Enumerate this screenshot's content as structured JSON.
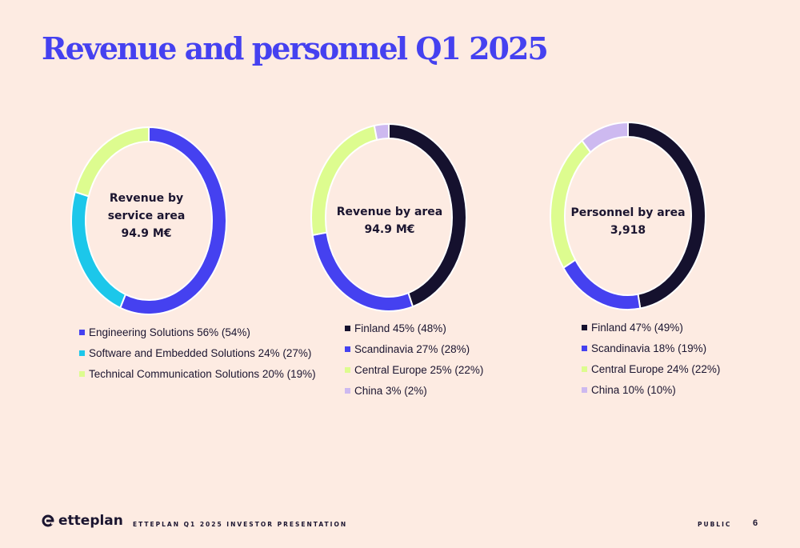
{
  "slide": {
    "title": "Revenue and personnel Q1 2025",
    "footer": "ETTEPLAN Q1 2025 INVESTOR PRESENTATION",
    "classification": "PUBLIC",
    "page_number": "6",
    "logo_text": "etteplan"
  },
  "colors": {
    "background": "#fdebe2",
    "title": "#4541f0",
    "navy": "#15112e",
    "blue": "#4541f0",
    "cyan": "#1cc7ea",
    "lime": "#ddfc8f",
    "lilac": "#cdb9f0"
  },
  "chart_data": [
    {
      "type": "pie",
      "center_label": [
        "Revenue by",
        "service area",
        "94.9 M€"
      ],
      "slices": [
        {
          "label": "Engineering Solutions 56% (54%)",
          "value": 56,
          "color": "#4541f0"
        },
        {
          "label": "Software and Embedded Solutions 24% (27%)",
          "value": 24,
          "color": "#1cc7ea"
        },
        {
          "label": "Technical Communication Solutions 20% (19%)",
          "value": 20,
          "color": "#ddfc8f"
        }
      ]
    },
    {
      "type": "pie",
      "center_label": [
        "Revenue by area",
        "94.9 M€"
      ],
      "slices": [
        {
          "label": "Finland 45% (48%)",
          "value": 45,
          "color": "#15112e"
        },
        {
          "label": "Scandinavia 27% (28%)",
          "value": 27,
          "color": "#4541f0"
        },
        {
          "label": "Central Europe 25% (22%)",
          "value": 25,
          "color": "#ddfc8f"
        },
        {
          "label": "China 3% (2%)",
          "value": 3,
          "color": "#cdb9f0"
        }
      ]
    },
    {
      "type": "pie",
      "center_label": [
        "Personnel by area",
        "3,918"
      ],
      "slices": [
        {
          "label": "Finland 47% (49%)",
          "value": 47,
          "color": "#15112e"
        },
        {
          "label": "Scandinavia 18% (19%)",
          "value": 18,
          "color": "#4541f0"
        },
        {
          "label": "Central Europe 24% (22%)",
          "value": 24,
          "color": "#ddfc8f"
        },
        {
          "label": "China 10% (10%)",
          "value": 10,
          "color": "#cdb9f0"
        }
      ]
    }
  ]
}
